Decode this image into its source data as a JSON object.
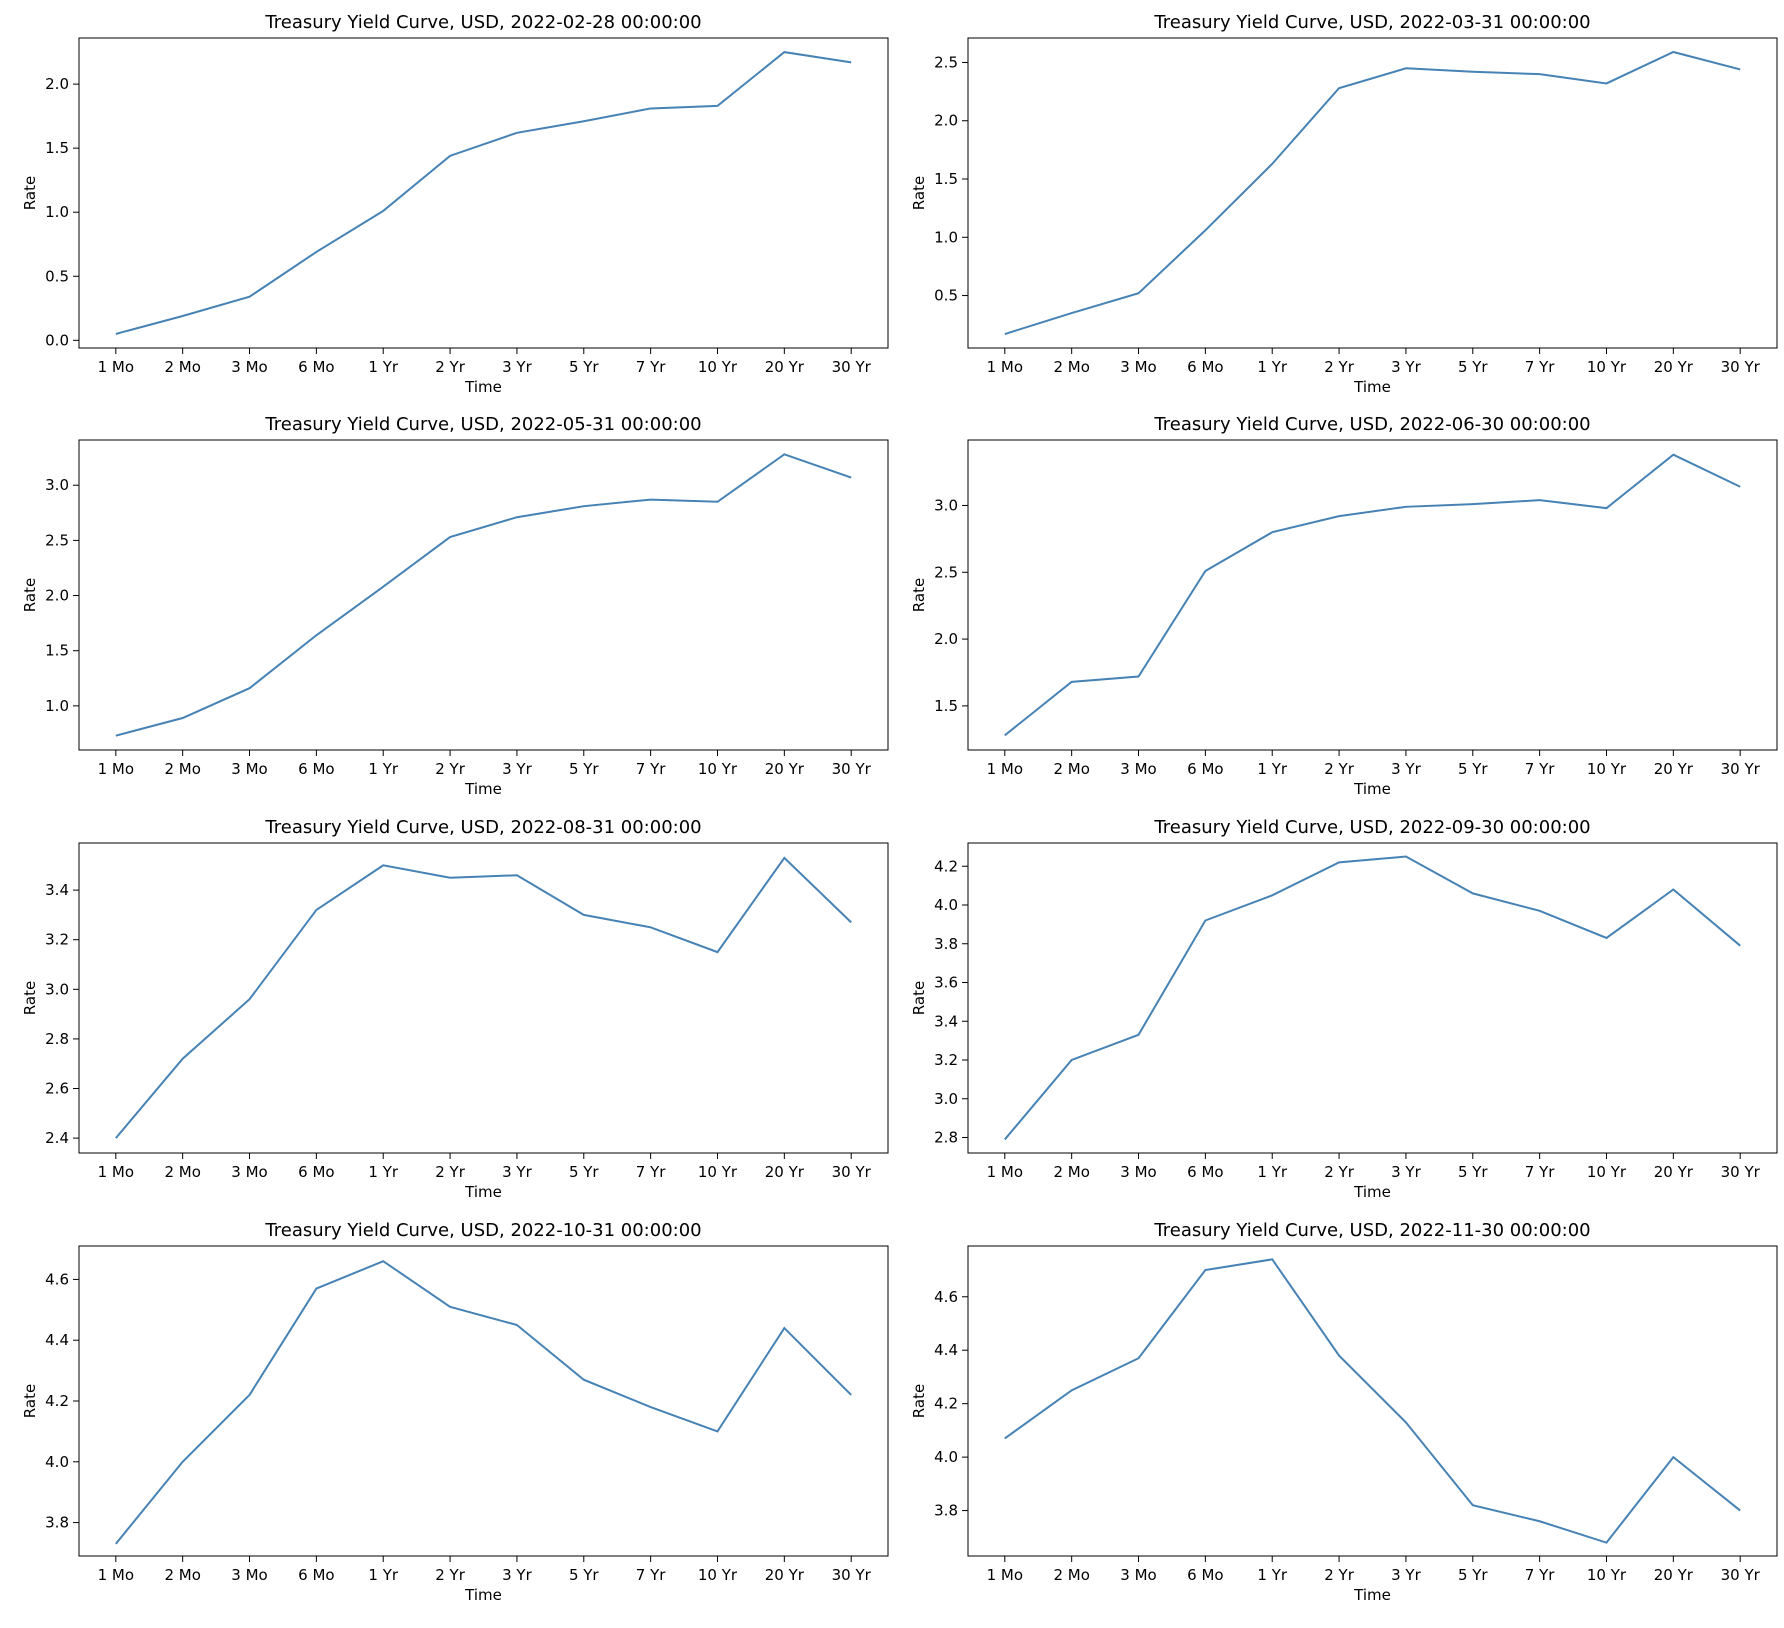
{
  "line_color": "#4682b4",
  "chart_data": [
    {
      "type": "line",
      "title": "Treasury Yield Curve, USD, 2022-02-28 00:00:00",
      "xlabel": "Time",
      "ylabel": "Rate",
      "categories": [
        "1 Mo",
        "2 Mo",
        "3 Mo",
        "6 Mo",
        "1 Yr",
        "2 Yr",
        "3 Yr",
        "5 Yr",
        "7 Yr",
        "10 Yr",
        "20 Yr",
        "30 Yr"
      ],
      "values": [
        0.05,
        0.19,
        0.34,
        0.69,
        1.01,
        1.44,
        1.62,
        1.71,
        1.81,
        1.83,
        2.25,
        2.17
      ],
      "ylim": [
        -0.06,
        2.36
      ],
      "yticks": [
        0.0,
        0.5,
        1.0,
        1.5,
        2.0
      ],
      "ytick_labels": [
        "0.0",
        "0.5",
        "1.0",
        "1.5",
        "2.0"
      ],
      "grid": false
    },
    {
      "type": "line",
      "title": "Treasury Yield Curve, USD, 2022-03-31 00:00:00",
      "xlabel": "Time",
      "ylabel": "Rate",
      "categories": [
        "1 Mo",
        "2 Mo",
        "3 Mo",
        "6 Mo",
        "1 Yr",
        "2 Yr",
        "3 Yr",
        "5 Yr",
        "7 Yr",
        "10 Yr",
        "20 Yr",
        "30 Yr"
      ],
      "values": [
        0.17,
        0.35,
        0.52,
        1.06,
        1.63,
        2.28,
        2.45,
        2.42,
        2.4,
        2.32,
        2.59,
        2.44
      ],
      "ylim": [
        0.05,
        2.71
      ],
      "yticks": [
        0.5,
        1.0,
        1.5,
        2.0,
        2.5
      ],
      "ytick_labels": [
        "0.5",
        "1.0",
        "1.5",
        "2.0",
        "2.5"
      ],
      "grid": false
    },
    {
      "type": "line",
      "title": "Treasury Yield Curve, USD, 2022-05-31 00:00:00",
      "xlabel": "Time",
      "ylabel": "Rate",
      "categories": [
        "1 Mo",
        "2 Mo",
        "3 Mo",
        "6 Mo",
        "1 Yr",
        "2 Yr",
        "3 Yr",
        "5 Yr",
        "7 Yr",
        "10 Yr",
        "20 Yr",
        "30 Yr"
      ],
      "values": [
        0.73,
        0.89,
        1.16,
        1.64,
        2.08,
        2.53,
        2.71,
        2.81,
        2.87,
        2.85,
        3.28,
        3.07
      ],
      "ylim": [
        0.6,
        3.41
      ],
      "yticks": [
        1.0,
        1.5,
        2.0,
        2.5,
        3.0
      ],
      "ytick_labels": [
        "1.0",
        "1.5",
        "2.0",
        "2.5",
        "3.0"
      ],
      "grid": false
    },
    {
      "type": "line",
      "title": "Treasury Yield Curve, USD, 2022-06-30 00:00:00",
      "xlabel": "Time",
      "ylabel": "Rate",
      "categories": [
        "1 Mo",
        "2 Mo",
        "3 Mo",
        "6 Mo",
        "1 Yr",
        "2 Yr",
        "3 Yr",
        "5 Yr",
        "7 Yr",
        "10 Yr",
        "20 Yr",
        "30 Yr"
      ],
      "values": [
        1.28,
        1.68,
        1.72,
        2.51,
        2.8,
        2.92,
        2.99,
        3.01,
        3.04,
        2.98,
        3.38,
        3.14
      ],
      "ylim": [
        1.17,
        3.49
      ],
      "yticks": [
        1.5,
        2.0,
        2.5,
        3.0
      ],
      "ytick_labels": [
        "1.5",
        "2.0",
        "2.5",
        "3.0"
      ],
      "grid": false
    },
    {
      "type": "line",
      "title": "Treasury Yield Curve, USD, 2022-08-31 00:00:00",
      "xlabel": "Time",
      "ylabel": "Rate",
      "categories": [
        "1 Mo",
        "2 Mo",
        "3 Mo",
        "6 Mo",
        "1 Yr",
        "2 Yr",
        "3 Yr",
        "5 Yr",
        "7 Yr",
        "10 Yr",
        "20 Yr",
        "30 Yr"
      ],
      "values": [
        2.4,
        2.72,
        2.96,
        3.32,
        3.5,
        3.45,
        3.46,
        3.3,
        3.25,
        3.15,
        3.53,
        3.27
      ],
      "ylim": [
        2.34,
        3.59
      ],
      "yticks": [
        2.4,
        2.6,
        2.8,
        3.0,
        3.2,
        3.4
      ],
      "ytick_labels": [
        "2.4",
        "2.6",
        "2.8",
        "3.0",
        "3.2",
        "3.4"
      ],
      "grid": false
    },
    {
      "type": "line",
      "title": "Treasury Yield Curve, USD, 2022-09-30 00:00:00",
      "xlabel": "Time",
      "ylabel": "Rate",
      "categories": [
        "1 Mo",
        "2 Mo",
        "3 Mo",
        "6 Mo",
        "1 Yr",
        "2 Yr",
        "3 Yr",
        "5 Yr",
        "7 Yr",
        "10 Yr",
        "20 Yr",
        "30 Yr"
      ],
      "values": [
        2.79,
        3.2,
        3.33,
        3.92,
        4.05,
        4.22,
        4.25,
        4.06,
        3.97,
        3.83,
        4.08,
        3.79
      ],
      "ylim": [
        2.72,
        4.32
      ],
      "yticks": [
        2.8,
        3.0,
        3.2,
        3.4,
        3.6,
        3.8,
        4.0,
        4.2
      ],
      "ytick_labels": [
        "2.8",
        "3.0",
        "3.2",
        "3.4",
        "3.6",
        "3.8",
        "4.0",
        "4.2"
      ],
      "grid": false
    },
    {
      "type": "line",
      "title": "Treasury Yield Curve, USD, 2022-10-31 00:00:00",
      "xlabel": "Time",
      "ylabel": "Rate",
      "categories": [
        "1 Mo",
        "2 Mo",
        "3 Mo",
        "6 Mo",
        "1 Yr",
        "2 Yr",
        "3 Yr",
        "5 Yr",
        "7 Yr",
        "10 Yr",
        "20 Yr",
        "30 Yr"
      ],
      "values": [
        3.73,
        4.0,
        4.22,
        4.57,
        4.66,
        4.51,
        4.45,
        4.27,
        4.18,
        4.1,
        4.44,
        4.22
      ],
      "ylim": [
        3.69,
        4.71
      ],
      "yticks": [
        3.8,
        4.0,
        4.2,
        4.4,
        4.6
      ],
      "ytick_labels": [
        "3.8",
        "4.0",
        "4.2",
        "4.4",
        "4.6"
      ],
      "grid": false
    },
    {
      "type": "line",
      "title": "Treasury Yield Curve, USD, 2022-11-30 00:00:00",
      "xlabel": "Time",
      "ylabel": "Rate",
      "categories": [
        "1 Mo",
        "2 Mo",
        "3 Mo",
        "6 Mo",
        "1 Yr",
        "2 Yr",
        "3 Yr",
        "5 Yr",
        "7 Yr",
        "10 Yr",
        "20 Yr",
        "30 Yr"
      ],
      "values": [
        4.07,
        4.25,
        4.37,
        4.7,
        4.74,
        4.38,
        4.13,
        3.82,
        3.76,
        3.68,
        4.0,
        3.8
      ],
      "ylim": [
        3.63,
        4.79
      ],
      "yticks": [
        3.8,
        4.0,
        4.2,
        4.4,
        4.6
      ],
      "ytick_labels": [
        "3.8",
        "4.0",
        "4.2",
        "4.4",
        "4.6"
      ],
      "grid": false
    }
  ]
}
